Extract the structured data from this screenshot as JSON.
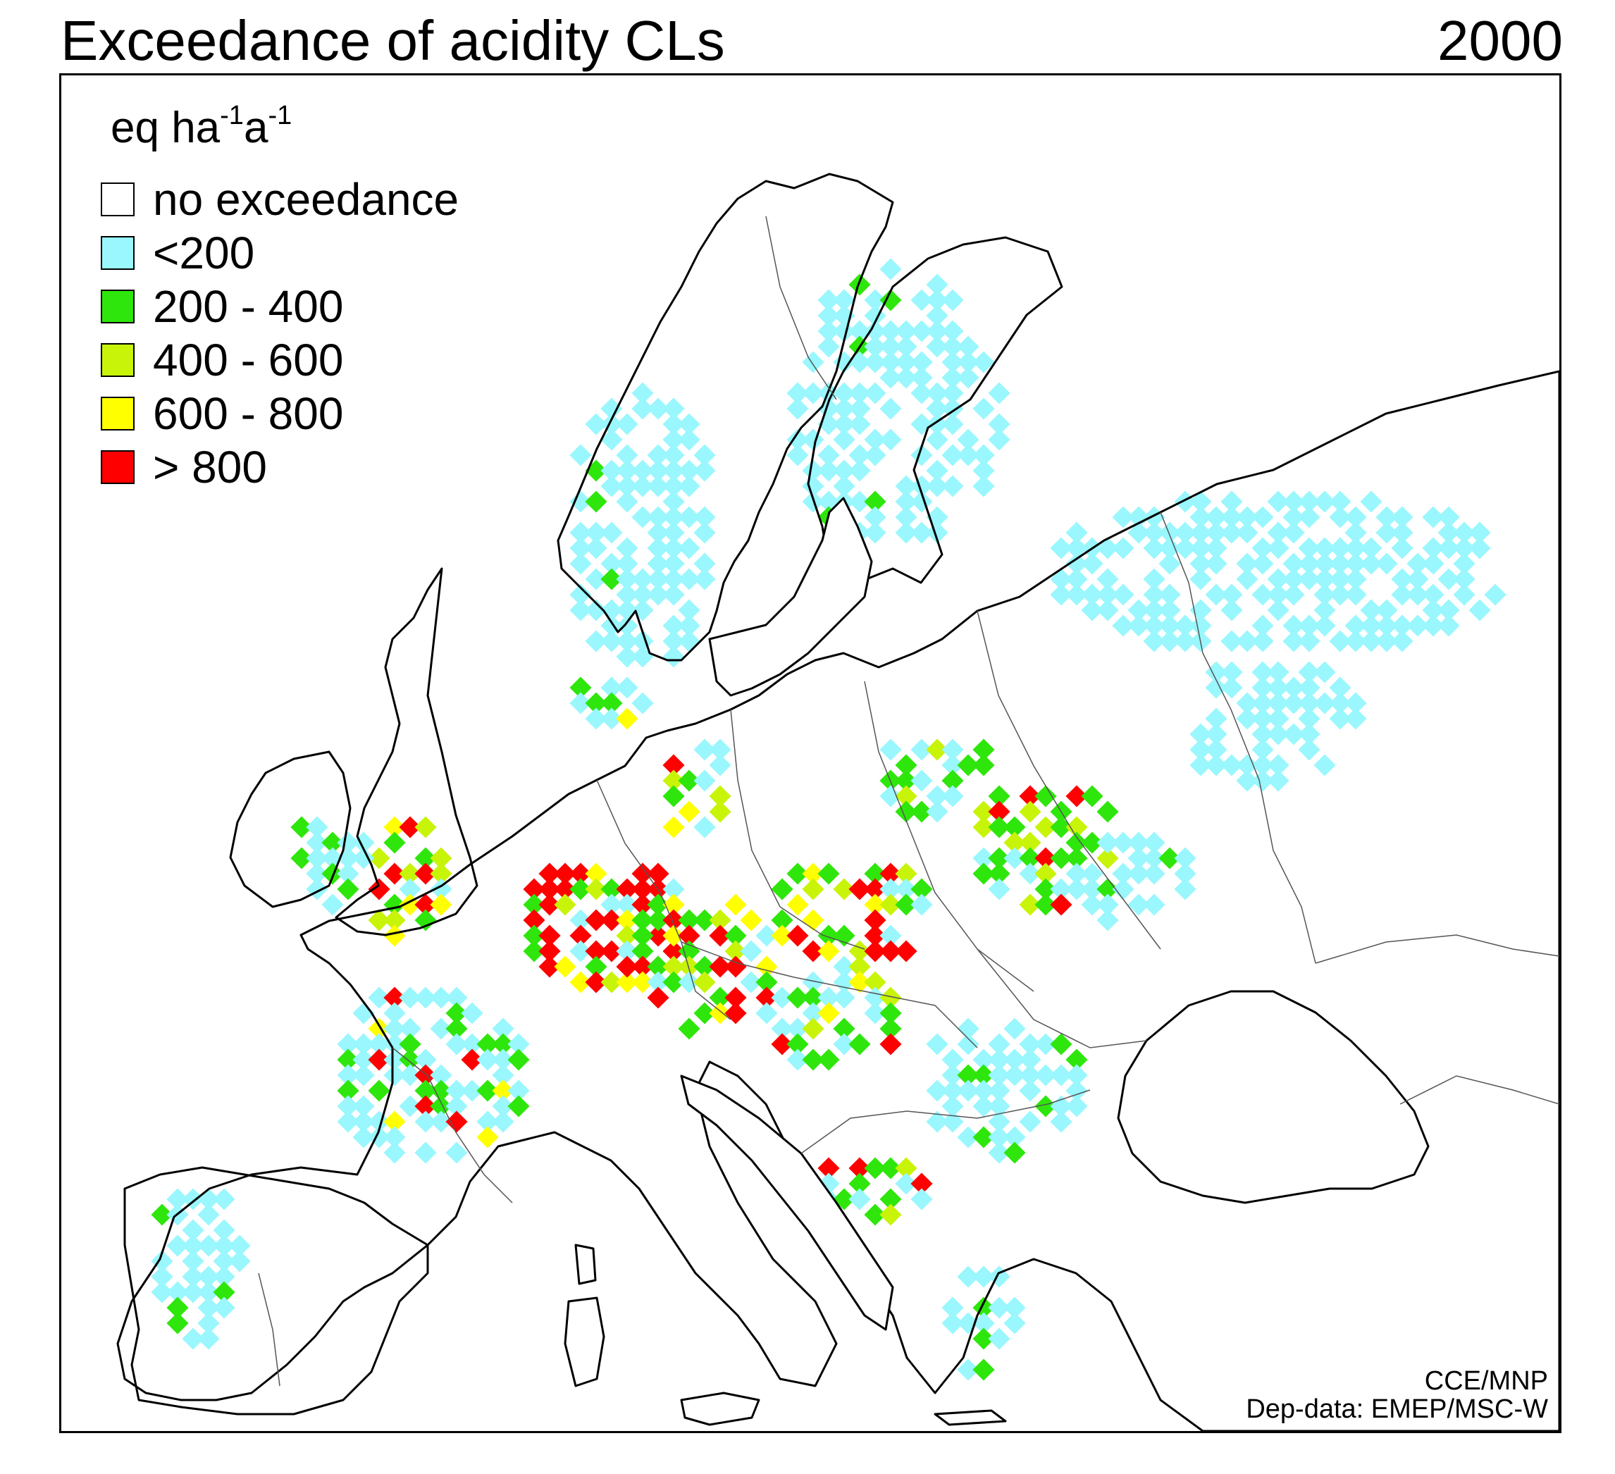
{
  "title": "Exceedance of acidity CLs",
  "year": "2000",
  "legend": {
    "units_base": "eq ha",
    "units_exp1": "-1",
    "units_mid": "a",
    "units_exp2": "-1",
    "items": [
      {
        "label": "no exceedance",
        "color": "#ffffff"
      },
      {
        "label": "<200",
        "color": "#99f7fd"
      },
      {
        "label": "200 - 400",
        "color": "#2ee60b"
      },
      {
        "label": "400 - 600",
        "color": "#c8f40a"
      },
      {
        "label": "600 - 800",
        "color": "#ffff00"
      },
      {
        "label": "> 800",
        "color": "#ff0000"
      }
    ]
  },
  "credits": {
    "line1": "CCE/MNP",
    "line2": "Dep-data: EMEP/MSC-W"
  }
}
